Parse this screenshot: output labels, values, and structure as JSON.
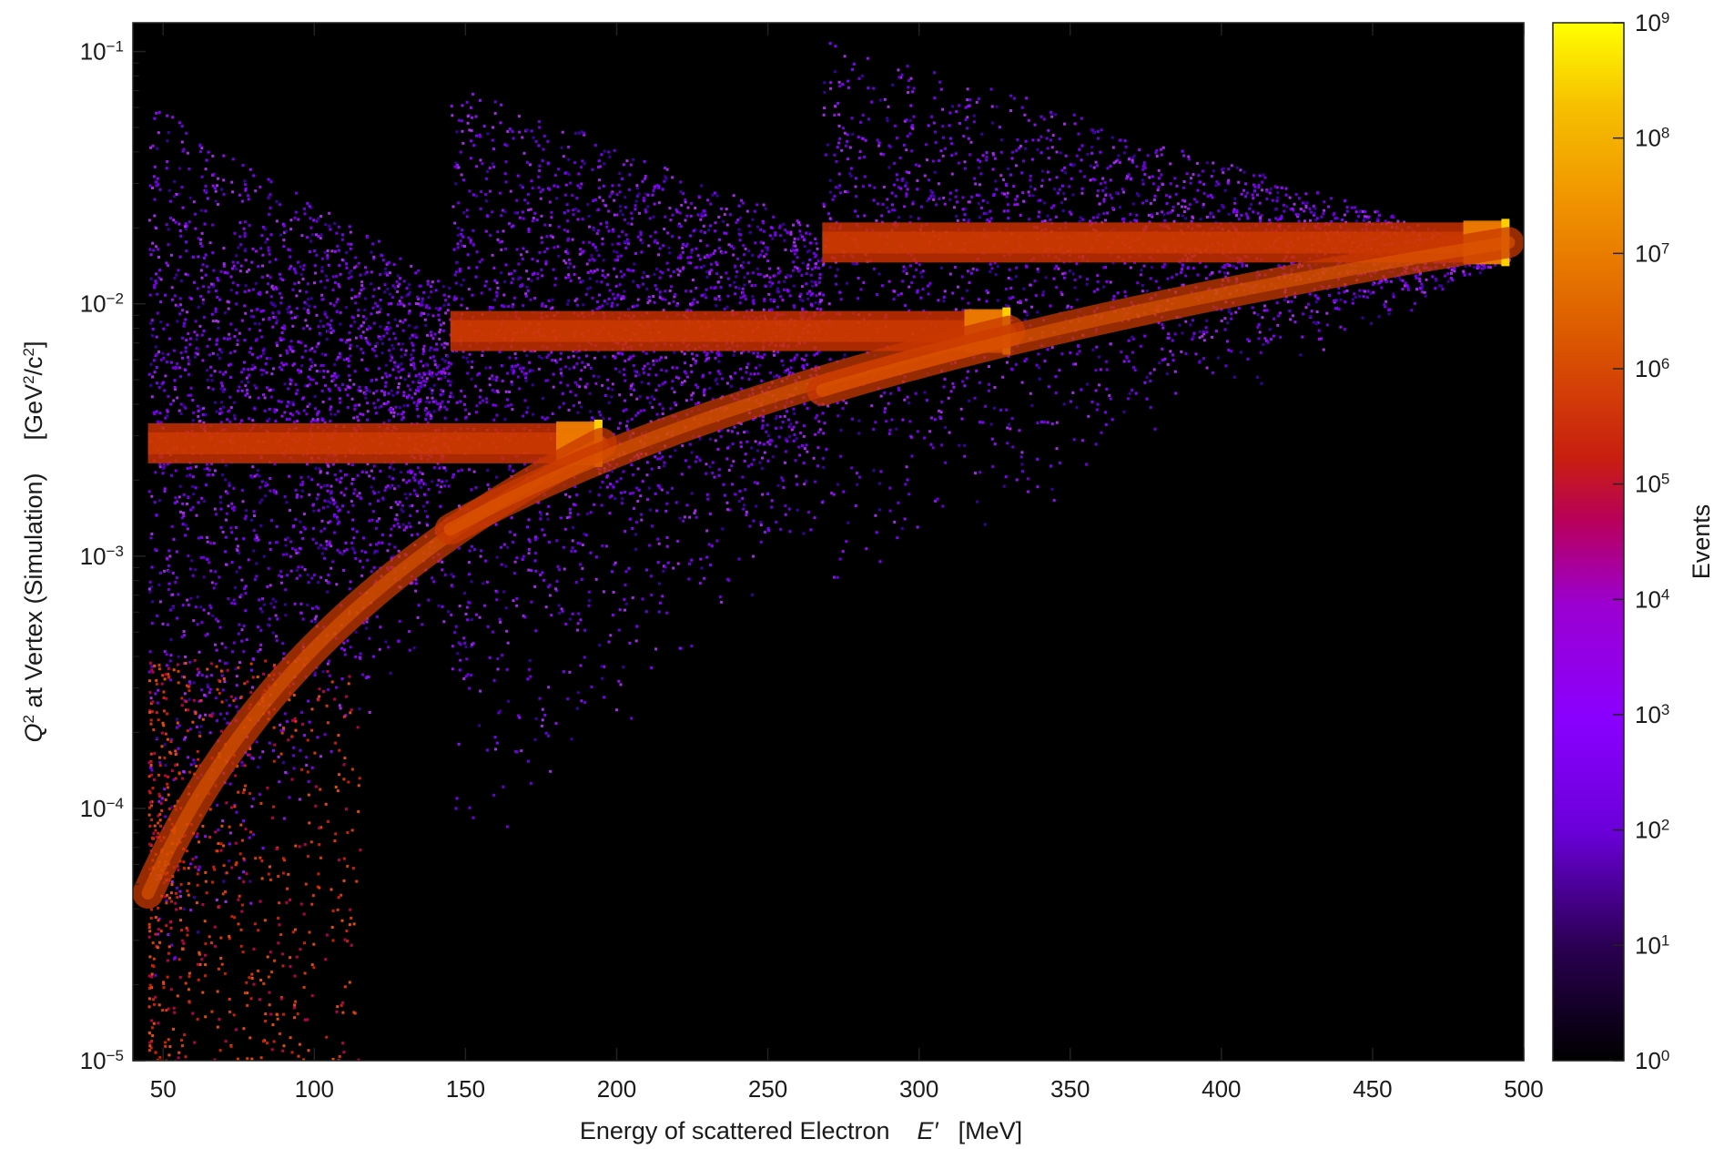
{
  "chart_data": {
    "type": "heatmap",
    "xlabel": "Energy of scattered Electron",
    "xlabel_symbol": "E′",
    "xlabel_unit": "[MeV]",
    "ylabel_prefix": "Q",
    "ylabel_text": " at Vertex (Simulation)",
    "ylabel_unit_open": "[GeV",
    "ylabel_unit_mid": "/c",
    "ylabel_unit_close": "]",
    "colorbar_label": "Events",
    "x_range": [
      40,
      500
    ],
    "y_range": [
      1e-05,
      0.13
    ],
    "y_scale": "log",
    "x_ticks": [
      "50",
      "100",
      "150",
      "200",
      "250",
      "300",
      "350",
      "400",
      "450",
      "500"
    ],
    "y_ticks": [
      {
        "value": 0.1,
        "base": "10",
        "exp": "−1"
      },
      {
        "value": 0.01,
        "base": "10",
        "exp": "−2"
      },
      {
        "value": 0.001,
        "base": "10",
        "exp": "−3"
      },
      {
        "value": 0.0001,
        "base": "10",
        "exp": "−4"
      },
      {
        "value": 1e-05,
        "base": "10",
        "exp": "−5"
      }
    ],
    "colorbar_scale": "log",
    "colorbar_range": [
      1,
      1000000000
    ],
    "colorbar_ticks": [
      {
        "value": 1,
        "base": "10",
        "exp": "0"
      },
      {
        "value": 10,
        "base": "10",
        "exp": "1"
      },
      {
        "value": 100,
        "base": "10",
        "exp": "2"
      },
      {
        "value": 1000,
        "base": "10",
        "exp": "3"
      },
      {
        "value": 10000,
        "base": "10",
        "exp": "4"
      },
      {
        "value": 100000,
        "base": "10",
        "exp": "5"
      },
      {
        "value": 1000000,
        "base": "10",
        "exp": "6"
      },
      {
        "value": 10000000,
        "base": "10",
        "exp": "7"
      },
      {
        "value": 100000000,
        "base": "10",
        "exp": "8"
      },
      {
        "value": 1000000000,
        "base": "10",
        "exp": "9"
      }
    ],
    "colormap": [
      "#000000",
      "#2a0052",
      "#6a00d8",
      "#9400e6",
      "#c8003a",
      "#dc5a00",
      "#f0a000",
      "#ffff00"
    ],
    "background": "#000000",
    "grid": false,
    "beam_settings": [
      {
        "beam_energy": 195,
        "q2_elastic": 0.0028
      },
      {
        "beam_energy": 330,
        "q2_elastic": 0.0078
      },
      {
        "beam_energy": 495,
        "q2_elastic": 0.0175
      }
    ],
    "diffuse_regions": [
      {
        "x_min": 45,
        "x_max": 145,
        "q2_max_left": 0.065,
        "q2_max_right": 0.012,
        "q2_min_left": 1e-05,
        "q2_min_right": 0.0005
      },
      {
        "x_min": 145,
        "x_max": 268,
        "q2_max_left": 0.08,
        "q2_max_right": 0.02,
        "q2_min_left": 4e-05,
        "q2_min_right": 0.0012
      },
      {
        "x_min": 268,
        "x_max": 495,
        "q2_max_left": 0.12,
        "q2_max_right": 0.016,
        "q2_min_left": 0.0005,
        "q2_min_right": 0.015
      }
    ]
  }
}
